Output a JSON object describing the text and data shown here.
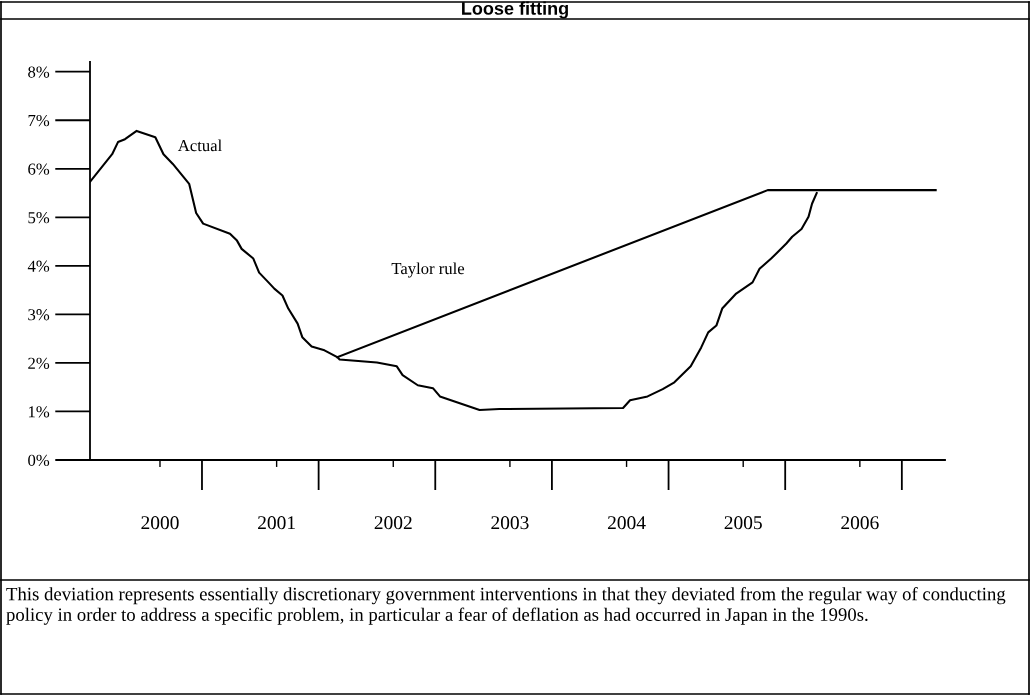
{
  "chart_data": {
    "type": "line",
    "title": "Loose fitting",
    "series": [
      {
        "color": "#000000",
        "x": [
          1999.4,
          1999.59,
          1999.64,
          1999.7,
          1999.8,
          1999.96,
          2000.03,
          2000.11,
          2000.25,
          2000.31,
          2000.37,
          2000.6,
          2000.66,
          2000.7,
          2000.8,
          2000.85,
          2000.93,
          2000.98,
          2001.05,
          2001.1,
          2001.18,
          2001.22,
          2001.3,
          2001.41,
          2001.52,
          2001.54,
          2001.86,
          2002.03,
          2002.08,
          2002.21,
          2002.34,
          2002.4,
          2002.74,
          2002.91,
          2003.97,
          2004.03,
          2004.18,
          2004.31,
          2004.41,
          2004.55,
          2004.64,
          2004.7,
          2004.77,
          2004.82,
          2004.94,
          2005.08,
          2005.14,
          2005.24,
          2005.37,
          2005.42,
          2005.5,
          2005.56,
          2005.59,
          2005.63
        ],
        "values": [
          5.73,
          6.3,
          6.55,
          6.61,
          6.78,
          6.65,
          6.3,
          6.1,
          5.69,
          5.09,
          4.87,
          4.66,
          4.52,
          4.35,
          4.15,
          3.86,
          3.66,
          3.53,
          3.39,
          3.12,
          2.81,
          2.53,
          2.34,
          2.26,
          2.12,
          2.07,
          2.01,
          1.93,
          1.75,
          1.54,
          1.48,
          1.31,
          1.03,
          1.05,
          1.07,
          1.23,
          1.31,
          1.46,
          1.6,
          1.93,
          2.32,
          2.63,
          2.77,
          3.12,
          3.43,
          3.66,
          3.94,
          4.15,
          4.46,
          4.6,
          4.76,
          5.01,
          5.28,
          5.5
        ]
      },
      {
        "color": "#000000",
        "x": [
          2001.52,
          2005.21,
          2006.65
        ],
        "values": [
          2.12,
          5.56,
          5.56
        ]
      }
    ],
    "xlim": [
      1999.4,
      2006.73
    ],
    "xticks": [
      2000,
      2001,
      2002,
      2003,
      2004,
      2005,
      2006
    ],
    "ylim": [
      0,
      8.2
    ],
    "yticks": [
      {
        "value": 0,
        "label": "0%"
      },
      {
        "value": 1,
        "label": "1%"
      },
      {
        "value": 2,
        "label": "2%"
      },
      {
        "value": 3,
        "label": "3%"
      },
      {
        "value": 4,
        "label": "4%"
      },
      {
        "value": 5,
        "label": "5%"
      },
      {
        "value": 6,
        "label": "6%"
      },
      {
        "value": 7,
        "label": "7%"
      },
      {
        "value": 8,
        "label": "8%"
      }
    ],
    "grid": false,
    "annotations": [
      "Actual",
      "Taylor rule",
      "This deviation represents essentially discretionary government interventions in that they deviated from the regular way of conducting policy in order to address a specific problem, in particular a fear of deflation as had occurred in Japan in the 1990s."
    ]
  }
}
